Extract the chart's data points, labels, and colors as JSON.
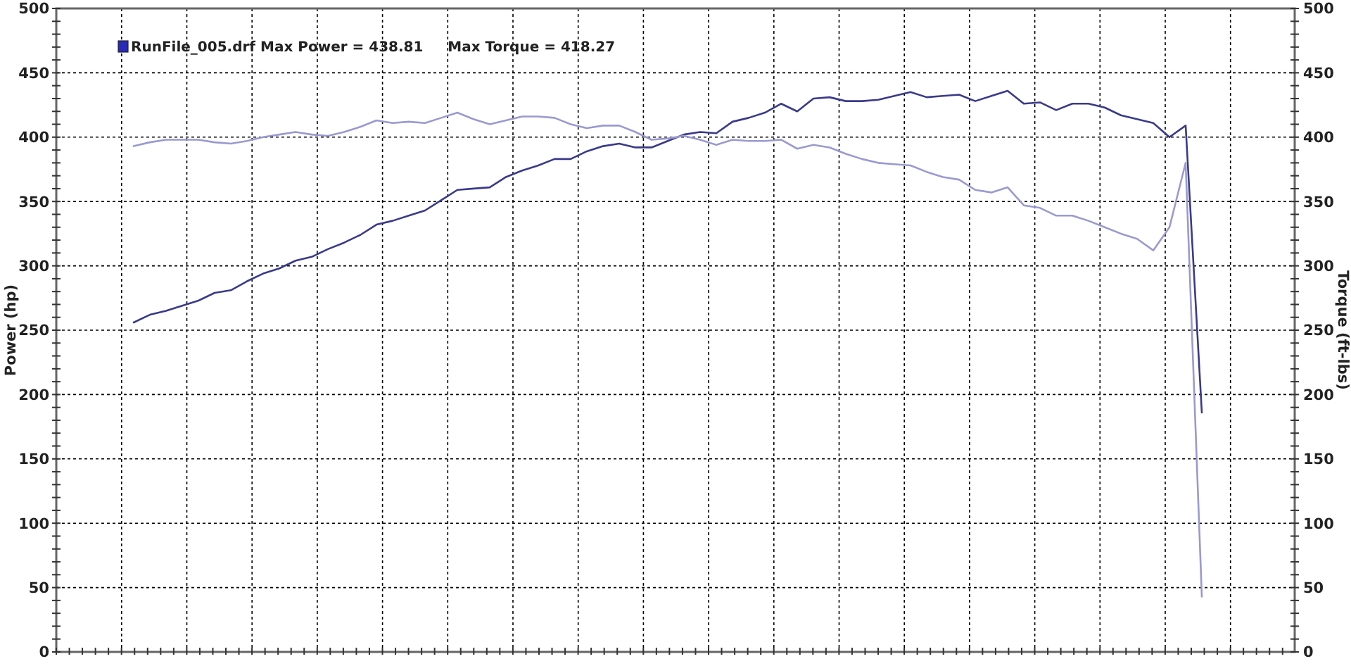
{
  "chart_data": {
    "type": "line",
    "ylabel": "Power (hp)",
    "y2label": "Torque (ft-lbs)",
    "annotations": [
      "RunFile_005.drf Max Power = 438.81     Max Torque = 418.27"
    ],
    "categories": [
      null,
      null,
      null,
      null,
      null,
      null,
      null,
      null,
      null,
      null,
      null,
      null,
      null,
      null,
      null,
      null,
      null,
      null,
      null,
      null,
      null,
      null,
      null,
      null,
      null,
      null,
      null,
      null,
      null,
      null,
      null,
      null,
      null,
      null,
      null,
      null,
      null,
      null,
      null,
      null,
      null,
      null,
      null,
      null,
      null,
      null,
      null,
      null,
      null,
      null,
      null,
      null,
      null,
      null,
      null,
      null,
      null,
      null,
      null,
      null,
      null,
      null,
      null,
      null,
      null,
      null,
      null
    ],
    "series": [
      {
        "color": "#3a3a8a",
        "values": [
          256,
          262,
          265,
          269,
          273,
          279,
          281,
          288,
          294,
          298,
          304,
          307,
          313,
          318,
          324,
          332,
          335,
          339,
          343,
          351,
          359,
          360,
          361,
          369,
          374,
          378,
          383,
          383,
          389,
          393,
          395,
          392,
          392,
          397,
          402,
          404,
          403,
          412,
          415,
          419,
          426,
          420,
          430,
          431,
          428,
          428,
          429,
          432,
          435,
          431,
          432,
          433,
          428,
          432,
          436,
          426,
          427,
          421,
          426,
          426,
          423,
          417,
          414,
          411,
          400,
          409,
          186
        ]
      },
      {
        "color": "#9a9ad0",
        "axis": "y2",
        "values": [
          393,
          396,
          398,
          398,
          398,
          396,
          395,
          397,
          400,
          402,
          404,
          402,
          401,
          404,
          408,
          413,
          411,
          412,
          411,
          415,
          419,
          414,
          410,
          413,
          416,
          416,
          415,
          410,
          407,
          409,
          409,
          404,
          398,
          399,
          401,
          398,
          394,
          398,
          397,
          397,
          398,
          391,
          394,
          392,
          387,
          383,
          380,
          379,
          378,
          373,
          369,
          367,
          359,
          357,
          361,
          347,
          345,
          339,
          339,
          335,
          330,
          325,
          321,
          312,
          330,
          380,
          43
        ]
      }
    ],
    "ylim": [
      0,
      500
    ],
    "yticks": [
      0,
      50,
      100,
      150,
      200,
      250,
      300,
      350,
      400,
      450,
      500
    ],
    "y2lim": [
      0,
      500
    ],
    "y2ticks": [
      0,
      50,
      100,
      150,
      200,
      250,
      300,
      350,
      400,
      450,
      500
    ],
    "grid": true,
    "line_style": "solid"
  }
}
